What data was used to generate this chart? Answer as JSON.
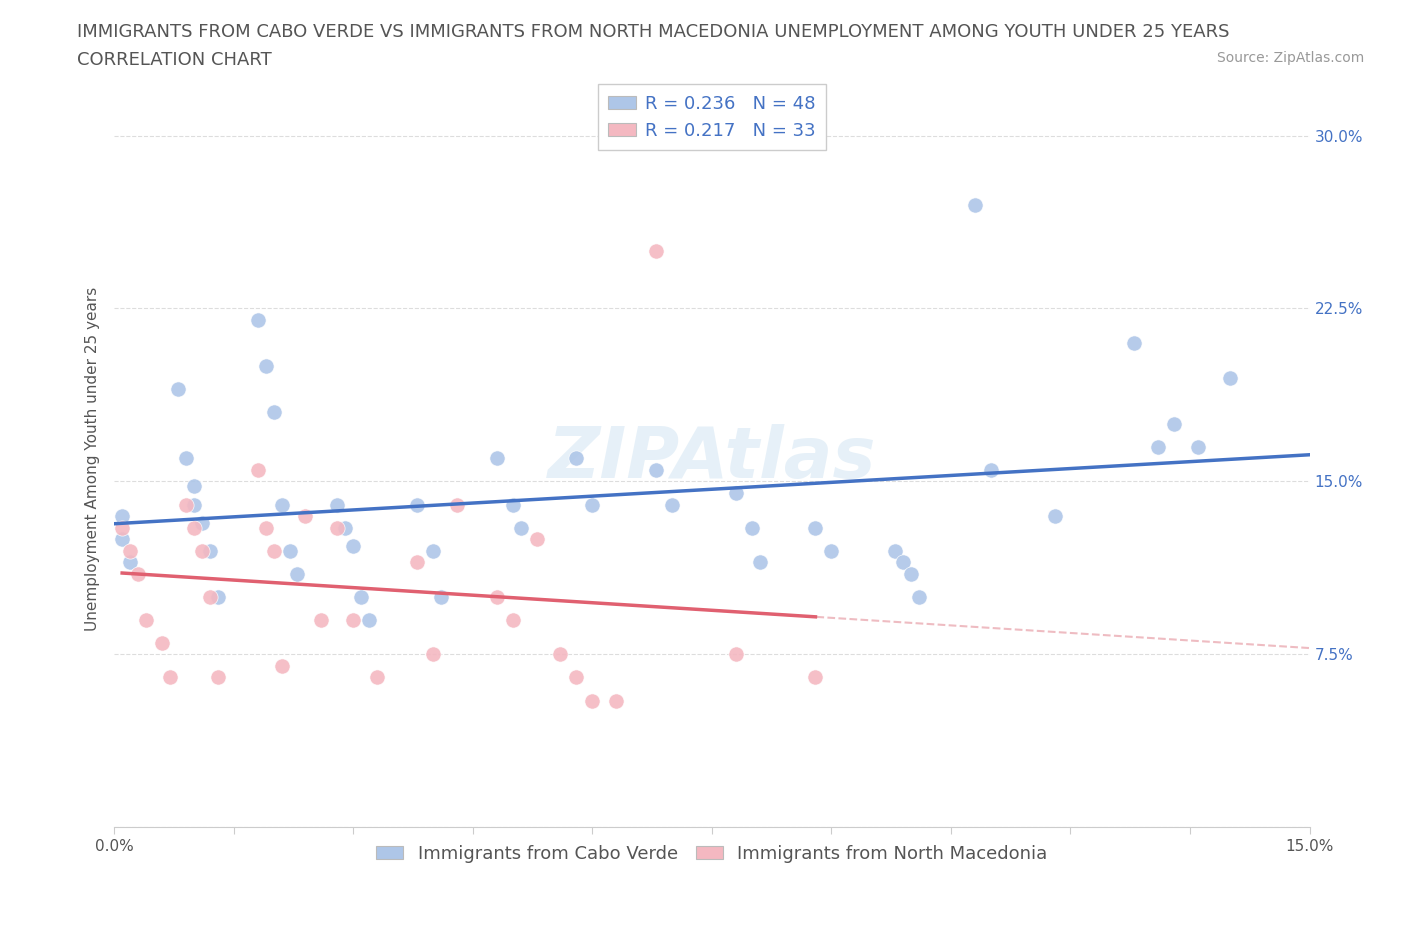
{
  "title_line1": "IMMIGRANTS FROM CABO VERDE VS IMMIGRANTS FROM NORTH MACEDONIA UNEMPLOYMENT AMONG YOUTH UNDER 25 YEARS",
  "title_line2": "CORRELATION CHART",
  "source_text": "Source: ZipAtlas.com",
  "ylabel": "Unemployment Among Youth under 25 years",
  "xlim": [
    0.0,
    0.15
  ],
  "ylim": [
    0.0,
    0.32
  ],
  "x_ticks": [
    0.0,
    0.015,
    0.03,
    0.045,
    0.06,
    0.075,
    0.09,
    0.105,
    0.12,
    0.135,
    0.15
  ],
  "x_tick_labels_show": [
    "0.0%",
    "",
    "",
    "",
    "",
    "",
    "",
    "",
    "",
    "",
    "15.0%"
  ],
  "y_tick_vals": [
    0.0,
    0.075,
    0.15,
    0.225,
    0.3
  ],
  "y_tick_labels_right": [
    "",
    "7.5%",
    "15.0%",
    "22.5%",
    "30.0%"
  ],
  "cabo_verde_R": 0.236,
  "cabo_verde_N": 48,
  "north_mac_R": 0.217,
  "north_mac_N": 33,
  "cabo_verde_color": "#aec6e8",
  "cabo_verde_line_color": "#4472c4",
  "north_mac_color": "#f4b8c1",
  "north_mac_line_color": "#e06070",
  "north_mac_dash_color": "#e8a0a8",
  "legend_labels": [
    "Immigrants from Cabo Verde",
    "Immigrants from North Macedonia"
  ],
  "title_fontsize": 13,
  "subtitle_fontsize": 13,
  "axis_label_fontsize": 11,
  "tick_fontsize": 11,
  "legend_fontsize": 13,
  "source_fontsize": 10,
  "cabo_verde_x": [
    0.001,
    0.001,
    0.002,
    0.008,
    0.009,
    0.01,
    0.01,
    0.011,
    0.012,
    0.013,
    0.018,
    0.019,
    0.02,
    0.021,
    0.022,
    0.023,
    0.028,
    0.029,
    0.03,
    0.031,
    0.032,
    0.038,
    0.04,
    0.041,
    0.048,
    0.05,
    0.051,
    0.058,
    0.06,
    0.068,
    0.07,
    0.078,
    0.08,
    0.081,
    0.088,
    0.09,
    0.098,
    0.099,
    0.1,
    0.101,
    0.108,
    0.11,
    0.118,
    0.128,
    0.131,
    0.133,
    0.136,
    0.14
  ],
  "cabo_verde_y": [
    0.135,
    0.125,
    0.115,
    0.19,
    0.16,
    0.148,
    0.14,
    0.132,
    0.12,
    0.1,
    0.22,
    0.2,
    0.18,
    0.14,
    0.12,
    0.11,
    0.14,
    0.13,
    0.122,
    0.1,
    0.09,
    0.14,
    0.12,
    0.1,
    0.16,
    0.14,
    0.13,
    0.16,
    0.14,
    0.155,
    0.14,
    0.145,
    0.13,
    0.115,
    0.13,
    0.12,
    0.12,
    0.115,
    0.11,
    0.1,
    0.27,
    0.155,
    0.135,
    0.21,
    0.165,
    0.175,
    0.165,
    0.195
  ],
  "north_mac_x": [
    0.001,
    0.002,
    0.003,
    0.004,
    0.006,
    0.007,
    0.009,
    0.01,
    0.011,
    0.012,
    0.013,
    0.018,
    0.019,
    0.02,
    0.021,
    0.024,
    0.026,
    0.028,
    0.03,
    0.033,
    0.038,
    0.04,
    0.043,
    0.048,
    0.05,
    0.053,
    0.056,
    0.058,
    0.06,
    0.063,
    0.068,
    0.078,
    0.088
  ],
  "north_mac_y": [
    0.13,
    0.12,
    0.11,
    0.09,
    0.08,
    0.065,
    0.14,
    0.13,
    0.12,
    0.1,
    0.065,
    0.155,
    0.13,
    0.12,
    0.07,
    0.135,
    0.09,
    0.13,
    0.09,
    0.065,
    0.115,
    0.075,
    0.14,
    0.1,
    0.09,
    0.125,
    0.075,
    0.065,
    0.055,
    0.055,
    0.25,
    0.075,
    0.065
  ]
}
